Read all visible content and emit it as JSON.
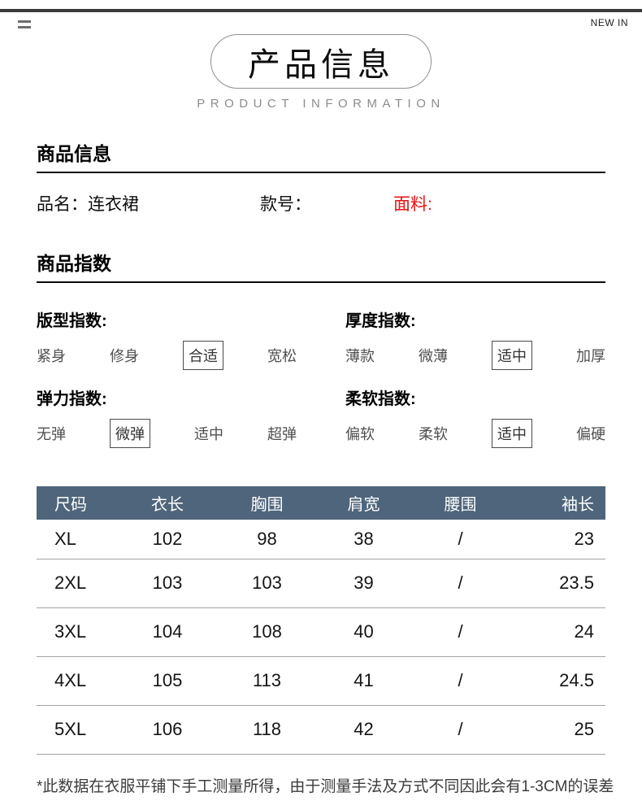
{
  "banner": {
    "new_in": "NEW IN",
    "title_cn": "产品信息",
    "title_en": "PRODUCT INFORMATION"
  },
  "product_info": {
    "section_title": "商品信息",
    "name_label": "品名：",
    "name_value": "连衣裙",
    "style_label": "款号：",
    "fabric_label": "面料:",
    "fabric_label_color": "#e81111"
  },
  "product_index": {
    "section_title": "商品指数",
    "groups": [
      {
        "label": "版型指数:",
        "options": [
          "紧身",
          "修身",
          "合适",
          "宽松"
        ],
        "selected_index": 2
      },
      {
        "label": "厚度指数:",
        "options": [
          "薄款",
          "微薄",
          "适中",
          "加厚"
        ],
        "selected_index": 2
      },
      {
        "label": "弹力指数:",
        "options": [
          "无弹",
          "微弹",
          "适中",
          "超弹"
        ],
        "selected_index": 1
      },
      {
        "label": "柔软指数:",
        "options": [
          "偏软",
          "柔软",
          "适中",
          "偏硬"
        ],
        "selected_index": 2
      }
    ]
  },
  "size_table": {
    "header_bg": "#4e657b",
    "columns": [
      "尺码",
      "衣长",
      "胸围",
      "肩宽",
      "腰围",
      "袖长"
    ],
    "rows": [
      [
        "XL",
        "102",
        "98",
        "38",
        "/",
        "23"
      ],
      [
        "2XL",
        "103",
        "103",
        "39",
        "/",
        "23.5"
      ],
      [
        "3XL",
        "104",
        "108",
        "40",
        "/",
        "24"
      ],
      [
        "4XL",
        "105",
        "113",
        "41",
        "/",
        "24.5"
      ],
      [
        "5XL",
        "106",
        "118",
        "42",
        "/",
        "25"
      ]
    ]
  },
  "footnote": "*此数据在衣服平铺下手工测量所得，由于测量手法及方式不同因此会有1-3CM的误差"
}
